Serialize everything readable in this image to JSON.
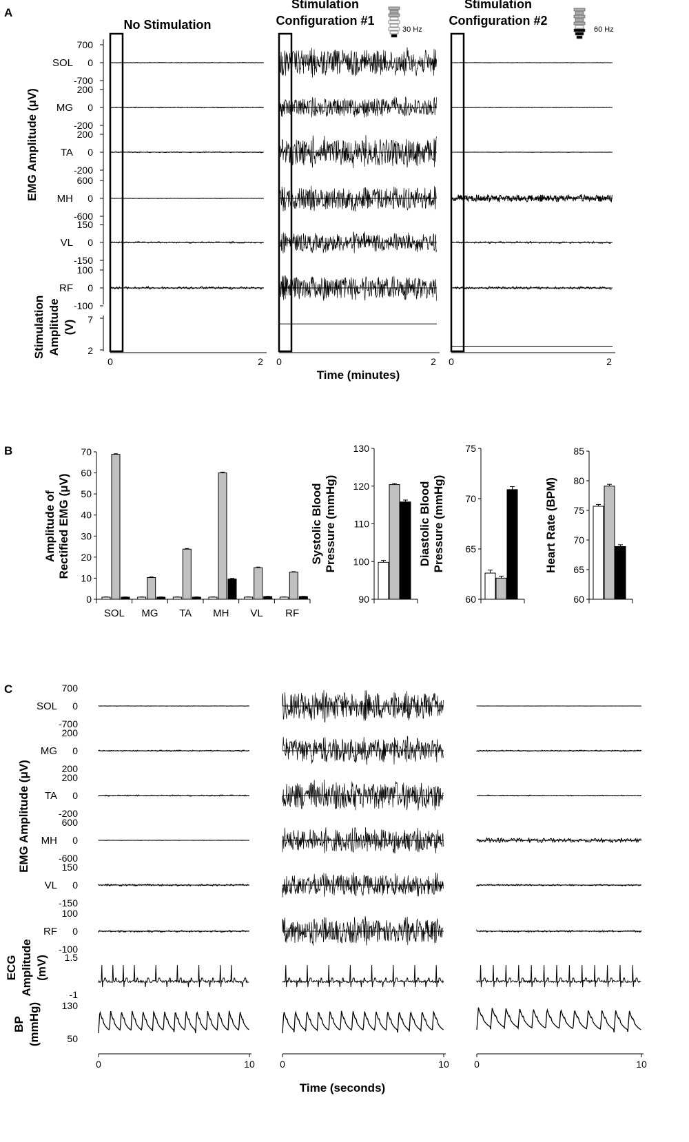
{
  "panels": {
    "a": "A",
    "b": "B",
    "c": "C"
  },
  "colors": {
    "no_stim": "#ffffff",
    "config1": "#c0c0c0",
    "config2": "#000000"
  },
  "chart_data": [
    {
      "id": "A",
      "type": "line",
      "column_titles": [
        "No Stimulation",
        "Stimulation\nConfiguration #1",
        "Stimulation\nConfiguration #2"
      ],
      "frequency_labels": [
        "30 Hz",
        "60 Hz"
      ],
      "ylabel": "EMG Amplitude (μV)",
      "xlabel": "Time (minutes)",
      "xlim": [
        0,
        2
      ],
      "xticks": [
        "0",
        "2"
      ],
      "rows": [
        {
          "muscle": "SOL",
          "ylim": [
            -700,
            700
          ],
          "ticks": [
            "700",
            "0",
            "-700"
          ],
          "amp": [
            0.02,
            0.85,
            0.01
          ]
        },
        {
          "muscle": "MG",
          "ylim": [
            -200,
            200
          ],
          "ticks": [
            "200",
            "0",
            "-200"
          ],
          "amp": [
            0.03,
            0.6,
            0.02
          ]
        },
        {
          "muscle": "TA",
          "ylim": [
            -200,
            200
          ],
          "ticks": [
            "200",
            "0",
            "-200"
          ],
          "amp": [
            0.03,
            0.9,
            0.01
          ]
        },
        {
          "muscle": "MH",
          "ylim": [
            -600,
            600
          ],
          "ticks": [
            "600",
            "0",
            "-600"
          ],
          "amp": [
            0.01,
            0.75,
            0.22
          ]
        },
        {
          "muscle": "VL",
          "ylim": [
            -150,
            150
          ],
          "ticks": [
            "150",
            "0",
            "-150"
          ],
          "amp": [
            0.05,
            0.6,
            0.06
          ]
        },
        {
          "muscle": "RF",
          "ylim": [
            -100,
            100
          ],
          "ticks": [
            "100",
            "0",
            "-100"
          ],
          "amp": [
            0.08,
            0.75,
            0.08
          ]
        }
      ],
      "stimulation": {
        "label": "Stimulation\nAmplitude\n(V)",
        "ylim": [
          2,
          7
        ],
        "ticks": [
          "7",
          "2"
        ],
        "values": [
          null,
          6.1,
          2.5
        ]
      }
    },
    {
      "id": "B1",
      "type": "bar",
      "ylabel": "Amplitude of\nRectified EMG (μV)",
      "categories": [
        "SOL",
        "MG",
        "TA",
        "MH",
        "VL",
        "RF"
      ],
      "ylim": [
        0,
        70
      ],
      "yticks": [
        0,
        10,
        20,
        30,
        40,
        50,
        60,
        70
      ],
      "series": [
        {
          "values": [
            1.0,
            1.0,
            1.0,
            1.0,
            1.0,
            1.0
          ],
          "err": [
            0.1,
            0.1,
            0.1,
            0.1,
            0.1,
            0.1
          ]
        },
        {
          "values": [
            68.8,
            10.3,
            23.8,
            60.0,
            15.0,
            12.9
          ],
          "err": [
            0.3,
            0.3,
            0.3,
            0.4,
            0.3,
            0.2
          ]
        },
        {
          "values": [
            1.0,
            1.0,
            1.0,
            9.6,
            1.3,
            1.3
          ],
          "err": [
            0.1,
            0.1,
            0.1,
            0.3,
            0.1,
            0.1
          ]
        }
      ]
    },
    {
      "id": "B2",
      "type": "bar",
      "ylabel": "Systolic Blood\nPressure (mmHg)",
      "ylim": [
        90,
        130
      ],
      "yticks": [
        90,
        100,
        110,
        120,
        130
      ],
      "values": [
        99.8,
        120.4,
        115.8
      ],
      "err": [
        0.5,
        0.3,
        0.5
      ]
    },
    {
      "id": "B3",
      "type": "bar",
      "ylabel": "Diastolic Blood\nPressure (mmHg)",
      "ylim": [
        60,
        75
      ],
      "yticks": [
        60,
        65,
        70,
        75
      ],
      "values": [
        62.6,
        62.1,
        70.9
      ],
      "err": [
        0.3,
        0.2,
        0.3
      ]
    },
    {
      "id": "B4",
      "type": "bar",
      "ylabel": "Heart Rate (BPM)",
      "ylim": [
        60,
        85
      ],
      "yticks": [
        60,
        65,
        70,
        75,
        80,
        85
      ],
      "values": [
        75.7,
        79.1,
        68.9
      ],
      "err": [
        0.3,
        0.3,
        0.3
      ]
    },
    {
      "id": "C",
      "type": "line",
      "ylabel": "EMG Amplitude (μV)",
      "xlabel": "Time (seconds)",
      "xlim": [
        0,
        10
      ],
      "xticks": [
        "0",
        "10"
      ],
      "rows": [
        {
          "muscle": "SOL",
          "ticks": [
            "700",
            "0",
            "-700"
          ],
          "amp": [
            0.01,
            0.9,
            0.005
          ]
        },
        {
          "muscle": "MG",
          "ticks": [
            "200",
            "0",
            "200"
          ],
          "amp": [
            0.04,
            0.8,
            0.04
          ]
        },
        {
          "muscle": "TA",
          "ticks": [
            "200",
            "0",
            "-200"
          ],
          "amp": [
            0.04,
            0.9,
            0.03
          ]
        },
        {
          "muscle": "MH",
          "ticks": [
            "600",
            "0",
            "-600"
          ],
          "amp": [
            0.01,
            0.75,
            0.14
          ]
        },
        {
          "muscle": "VL",
          "ticks": [
            "150",
            "0",
            "-150"
          ],
          "amp": [
            0.06,
            0.7,
            0.05
          ]
        },
        {
          "muscle": "RF",
          "ticks": [
            "100",
            "0",
            "-100"
          ],
          "amp": [
            0.06,
            0.8,
            0.06
          ]
        }
      ],
      "ecg": {
        "label": "ECG\nAmplitude\n(mV)",
        "ylim": [
          -1,
          1.5
        ],
        "ticks": [
          "1.5",
          "-1"
        ],
        "beats_per_10s": [
          14,
          15,
          13
        ]
      },
      "bp": {
        "label": "BP\n(mmHg)",
        "ylim": [
          50,
          130
        ],
        "ticks": [
          "130",
          "50"
        ],
        "beats_per_10s": [
          14,
          14,
          12
        ]
      }
    }
  ]
}
